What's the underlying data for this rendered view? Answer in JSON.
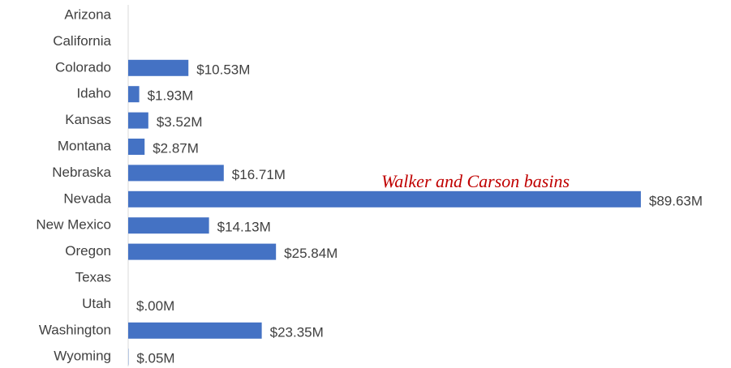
{
  "chart_data": {
    "type": "hbar",
    "categories": [
      "Arizona",
      "California",
      "Colorado",
      "Idaho",
      "Kansas",
      "Montana",
      "Nebraska",
      "Nevada",
      "New Mexico",
      "Oregon",
      "Texas",
      "Utah",
      "Washington",
      "Wyoming"
    ],
    "values": [
      null,
      null,
      10.53,
      1.93,
      3.52,
      2.87,
      16.71,
      89.63,
      14.13,
      25.84,
      null,
      0,
      23.35,
      0.05
    ],
    "value_labels": [
      null,
      null,
      "$10.53M",
      "$1.93M",
      "$3.52M",
      "$2.87M",
      "$16.71M",
      "$89.63M",
      "$14.13M",
      "$25.84M",
      null,
      "$.00M",
      "$23.35M",
      "$.05M"
    ],
    "color": "#4472c4",
    "annotation": "Walker and Carson basins"
  }
}
